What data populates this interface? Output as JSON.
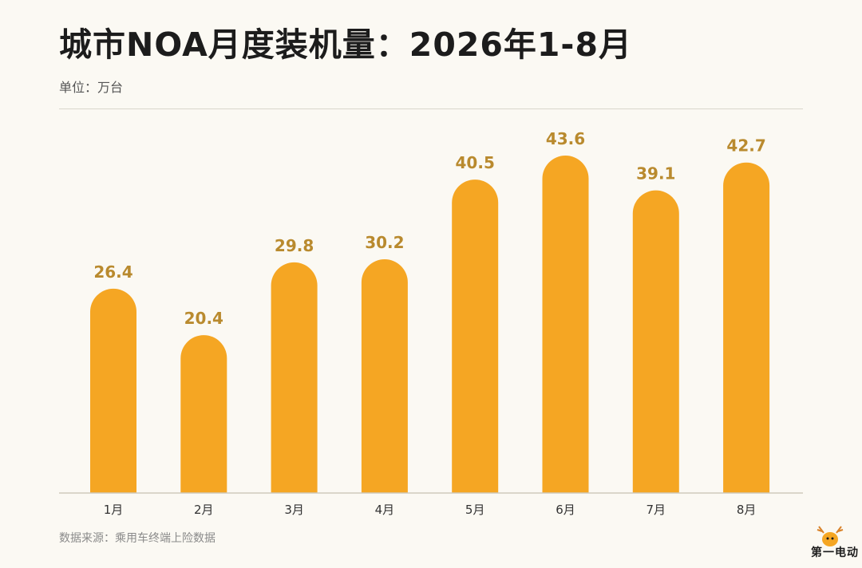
{
  "header": {
    "title": "城市NOA月度装机量：2026年1-8月",
    "unit": "单位：万台"
  },
  "footer": {
    "source": "数据来源：乘用车终端上险数据"
  },
  "logo": {
    "icon": "deer-mascot-icon",
    "text": "第一电动"
  },
  "colors": {
    "bar": "#f5a623",
    "value_label": "#b98a2e",
    "axis": "#cfcabd",
    "tick_label": "#333333"
  },
  "chart_data": {
    "type": "bar",
    "categories": [
      "1月",
      "2月",
      "3月",
      "4月",
      "5月",
      "6月",
      "7月",
      "8月"
    ],
    "values": [
      26.4,
      20.4,
      29.8,
      30.2,
      40.5,
      43.6,
      39.1,
      42.7
    ],
    "value_labels": [
      "26.4",
      "20.4",
      "29.8",
      "30.2",
      "40.5",
      "43.6",
      "39.1",
      "42.7"
    ],
    "ylim": [
      0,
      47
    ],
    "grid": false,
    "legend": "none"
  }
}
